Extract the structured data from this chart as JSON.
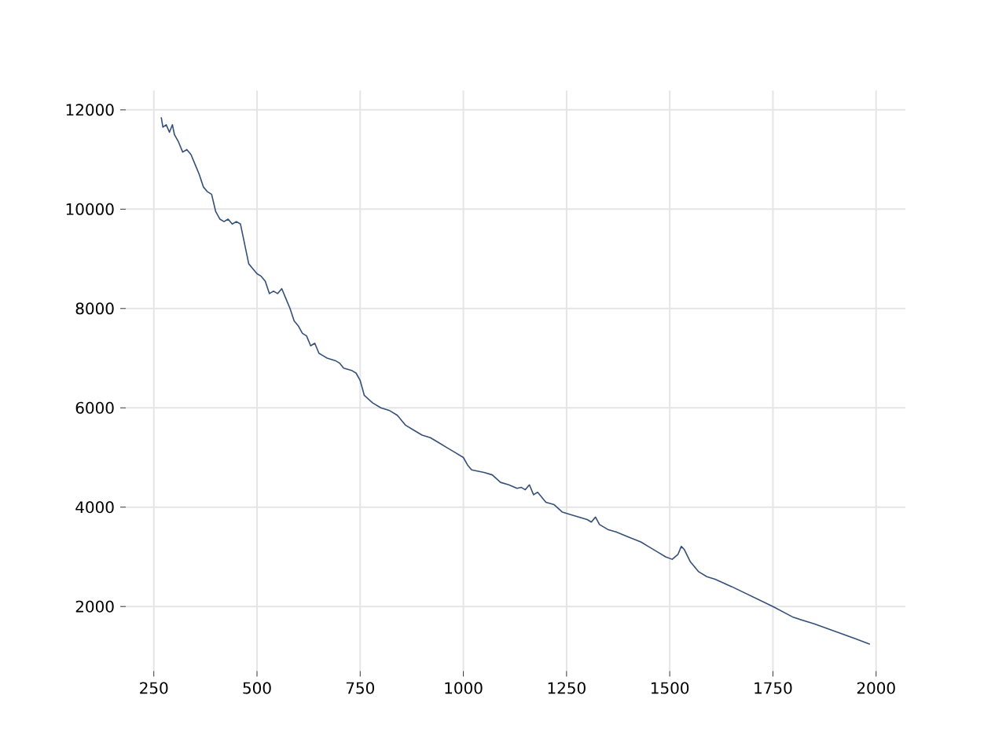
{
  "chart_data": {
    "type": "line",
    "color": "#34507a",
    "x": [
      268,
      272,
      280,
      288,
      295,
      300,
      310,
      320,
      330,
      340,
      350,
      360,
      370,
      380,
      390,
      400,
      410,
      420,
      430,
      440,
      450,
      460,
      470,
      480,
      490,
      500,
      510,
      520,
      530,
      540,
      550,
      560,
      570,
      580,
      590,
      600,
      610,
      620,
      630,
      640,
      650,
      660,
      670,
      690,
      700,
      710,
      730,
      740,
      750,
      760,
      780,
      800,
      820,
      840,
      860,
      880,
      900,
      920,
      940,
      960,
      980,
      1000,
      1010,
      1020,
      1050,
      1070,
      1090,
      1110,
      1130,
      1140,
      1150,
      1160,
      1170,
      1180,
      1200,
      1220,
      1240,
      1260,
      1280,
      1300,
      1310,
      1320,
      1330,
      1350,
      1370,
      1400,
      1430,
      1450,
      1470,
      1490,
      1506,
      1520,
      1528,
      1535,
      1550,
      1570,
      1590,
      1610,
      1650,
      1700,
      1750,
      1800,
      1850,
      1900,
      1950,
      1985
    ],
    "values": [
      11850,
      11650,
      11700,
      11550,
      11700,
      11500,
      11350,
      11150,
      11200,
      11100,
      10900,
      10700,
      10450,
      10350,
      10300,
      9950,
      9800,
      9750,
      9800,
      9700,
      9750,
      9700,
      9300,
      8900,
      8800,
      8700,
      8650,
      8550,
      8300,
      8350,
      8300,
      8400,
      8200,
      8000,
      7750,
      7650,
      7500,
      7450,
      7250,
      7300,
      7100,
      7050,
      7000,
      6950,
      6900,
      6800,
      6750,
      6700,
      6550,
      6250,
      6100,
      6000,
      5950,
      5850,
      5650,
      5550,
      5450,
      5400,
      5300,
      5200,
      5100,
      5000,
      4850,
      4750,
      4700,
      4650,
      4500,
      4450,
      4380,
      4400,
      4350,
      4450,
      4250,
      4300,
      4100,
      4050,
      3900,
      3850,
      3800,
      3750,
      3700,
      3800,
      3650,
      3550,
      3500,
      3400,
      3300,
      3200,
      3100,
      3000,
      2950,
      3050,
      3210,
      3150,
      2900,
      2700,
      2600,
      2550,
      2400,
      2200,
      2000,
      1780,
      1650,
      1500,
      1350,
      1240
    ],
    "xlim": [
      182,
      2071
    ],
    "ylim": [
      700,
      12390
    ],
    "xticks": [
      250,
      500,
      750,
      1000,
      1250,
      1500,
      1750,
      2000
    ],
    "yticks": [
      2000,
      4000,
      6000,
      8000,
      10000,
      12000
    ],
    "grid": true
  }
}
